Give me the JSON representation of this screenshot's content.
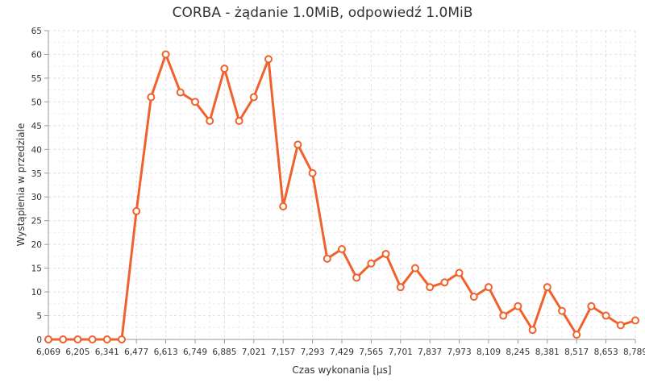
{
  "chart_data": {
    "type": "line",
    "title": "CORBA - żądanie 1.0MiB, odpowiedź 1.0MiB",
    "xlabel": "Czas wykonania [µs]",
    "ylabel": "Wystąpienia w przedziale",
    "x_tick_labels": [
      "6,069",
      "6,205",
      "6,341",
      "6,477",
      "6,613",
      "6,749",
      "6,885",
      "7,021",
      "7,157",
      "7,293",
      "7,429",
      "7,565",
      "7,701",
      "7,837",
      "7,973",
      "8,109",
      "8,245",
      "8,381",
      "8,517",
      "8,653",
      "8,789"
    ],
    "y_tick_labels": [
      "0",
      "5",
      "10",
      "15",
      "20",
      "25",
      "30",
      "35",
      "40",
      "45",
      "50",
      "55",
      "60",
      "65"
    ],
    "x_range": [
      6.069,
      8.789
    ],
    "ylim": [
      0,
      65
    ],
    "grid": true,
    "series": [
      {
        "color": "#f0622d",
        "x": [
          6.069,
          6.137,
          6.205,
          6.273,
          6.341,
          6.409,
          6.477,
          6.545,
          6.613,
          6.681,
          6.749,
          6.817,
          6.885,
          6.953,
          7.021,
          7.089,
          7.157,
          7.225,
          7.293,
          7.361,
          7.429,
          7.497,
          7.565,
          7.633,
          7.701,
          7.769,
          7.837,
          7.905,
          7.973,
          8.041,
          8.109,
          8.177,
          8.245,
          8.313,
          8.381,
          8.449,
          8.517,
          8.585,
          8.653,
          8.721,
          8.789
        ],
        "values": [
          0,
          0,
          0,
          0,
          0,
          0,
          27,
          51,
          60,
          52,
          50,
          46,
          57,
          46,
          51,
          59,
          28,
          41,
          35,
          17,
          19,
          13,
          16,
          18,
          11,
          15,
          11,
          12,
          14,
          9,
          11,
          5,
          7,
          2,
          11,
          6,
          1,
          7,
          5,
          3,
          4
        ]
      }
    ]
  }
}
